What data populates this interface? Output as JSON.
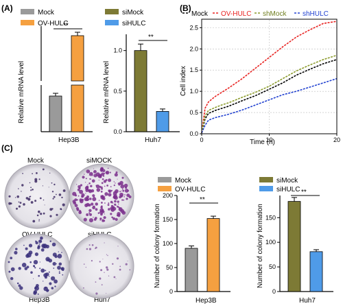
{
  "panels": {
    "A": "(A)",
    "B": "(B)",
    "C": "(C)"
  },
  "colors": {
    "mock": "#9a9a9a",
    "ov_hulc": "#f5a040",
    "simock": "#7d7a35",
    "sihulc": "#4f9be8",
    "curve_mock": "#000000",
    "curve_ov": "#e8211f",
    "curve_sh_mock": "#8a9a2a",
    "curve_sh_hulc": "#2040d0"
  },
  "charts": {
    "a_left": {
      "legend": [
        "Mock",
        "OV-HULC"
      ],
      "ylabel": "Relative mRNA level",
      "xcat": "Hep3B",
      "sig": "**"
    },
    "a_right": {
      "legend": [
        "siMock",
        "siHULC"
      ],
      "ylabel": "Relative mRNA level",
      "xcat": "Huh7",
      "sig": "**",
      "ticks": [
        "0.0",
        "0.5",
        "1.0"
      ]
    },
    "b": {
      "legend": [
        "Mock",
        "OV-HULC",
        "shMock",
        "shHULC"
      ],
      "ylabel": "Cell index",
      "xlabel": "Time (h)",
      "yticks": [
        "0.0",
        "0.5",
        "1.0",
        "1.5",
        "2.0",
        "2.5"
      ],
      "xticks": [
        "0",
        "10",
        "20"
      ]
    },
    "c_photos": {
      "labels": [
        "Mock",
        "siMOCK",
        "OV-HULC",
        "siHULC",
        "Hep3B",
        "Huh7"
      ]
    },
    "c_mid": {
      "legend": [
        "Mock",
        "OV-HULC"
      ],
      "ylabel": "Number of colony formation",
      "xcat": "Hep3B",
      "sig": "**",
      "ticks": [
        "0",
        "50",
        "100",
        "150",
        "200"
      ]
    },
    "c_right": {
      "legend": [
        "siMock",
        "siHULC"
      ],
      "ylabel": "Number of colony formation",
      "xcat": "Huh7",
      "sig": "**",
      "ticks": [
        "0",
        "50",
        "100",
        "150"
      ]
    }
  },
  "chart_data": [
    {
      "type": "bar",
      "panel": "A-left",
      "categories": [
        "Mock",
        "OV-HULC"
      ],
      "values": [
        1.0,
        77
      ],
      "errors": [
        0.08,
        2.5
      ],
      "broken_axis": true,
      "xlabel": "Hep3B",
      "ylabel": "Relative mRNA level"
    },
    {
      "type": "bar",
      "panel": "A-right",
      "categories": [
        "siMock",
        "siHULC"
      ],
      "values": [
        1.0,
        0.25
      ],
      "errors": [
        0.08,
        0.03
      ],
      "ylim": [
        0,
        1.2
      ],
      "xlabel": "Huh7",
      "ylabel": "Relative mRNA level"
    },
    {
      "type": "line",
      "panel": "B",
      "xlabel": "Time (h)",
      "ylabel": "Cell index",
      "xlim": [
        0,
        20
      ],
      "ylim": [
        0,
        2.7
      ],
      "grid": true,
      "legend_position": "top",
      "x": [
        0,
        0.5,
        1,
        2,
        3,
        4,
        6,
        8,
        10,
        12,
        14,
        16,
        18,
        20
      ],
      "series": [
        {
          "name": "Mock",
          "values": [
            0.02,
            0.35,
            0.48,
            0.55,
            0.6,
            0.65,
            0.78,
            0.9,
            1.05,
            1.2,
            1.38,
            1.52,
            1.65,
            1.75
          ]
        },
        {
          "name": "OV-HULC",
          "values": [
            0.02,
            0.6,
            0.75,
            0.88,
            0.98,
            1.08,
            1.3,
            1.55,
            1.8,
            2.05,
            2.28,
            2.45,
            2.6,
            2.65
          ]
        },
        {
          "name": "shMock",
          "values": [
            0.02,
            0.42,
            0.55,
            0.62,
            0.68,
            0.73,
            0.86,
            0.98,
            1.12,
            1.3,
            1.48,
            1.62,
            1.75,
            1.85
          ]
        },
        {
          "name": "shHULC",
          "values": [
            0.02,
            0.2,
            0.32,
            0.38,
            0.42,
            0.46,
            0.56,
            0.68,
            0.8,
            0.92,
            1.0,
            1.1,
            1.2,
            1.3
          ]
        }
      ]
    },
    {
      "type": "bar",
      "panel": "C-middle",
      "categories": [
        "Mock",
        "OV-HULC"
      ],
      "values": [
        90,
        152
      ],
      "errors": [
        5,
        5
      ],
      "ylim": [
        0,
        200
      ],
      "xlabel": "Hep3B",
      "ylabel": "Number of colony formation"
    },
    {
      "type": "bar",
      "panel": "C-right",
      "categories": [
        "siMock",
        "siHULC"
      ],
      "values": [
        183,
        81
      ],
      "errors": [
        8,
        4
      ],
      "ylim": [
        0,
        195
      ],
      "xlabel": "Huh7",
      "ylabel": "Number of colony formation"
    }
  ]
}
